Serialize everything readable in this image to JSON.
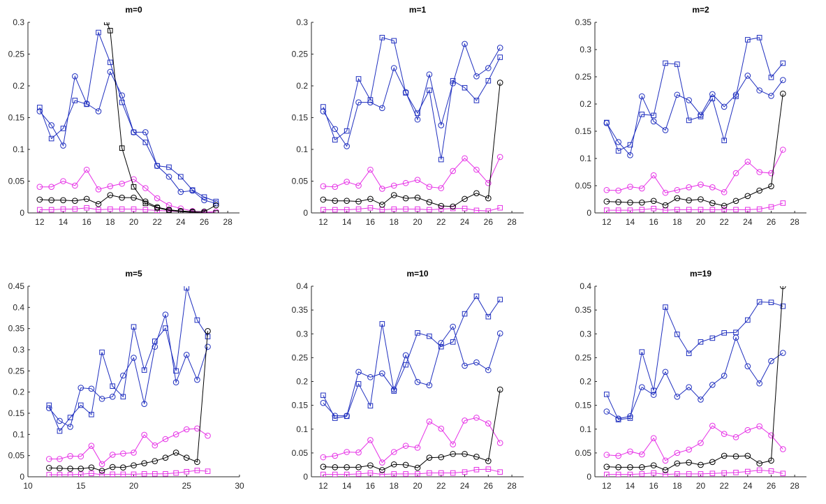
{
  "colors": {
    "blue": "#1f2fbf",
    "magenta": "#e631e6",
    "black": "#000000",
    "axis": "#262626"
  },
  "chart_data": [
    {
      "type": "line",
      "title": "m=0",
      "xlim": [
        11,
        29
      ],
      "ylim": [
        0,
        0.3
      ],
      "xticks": [
        12,
        14,
        16,
        18,
        20,
        22,
        24,
        26,
        28
      ],
      "yticks": [
        0,
        0.05,
        0.1,
        0.15,
        0.2,
        0.25,
        0.3
      ],
      "xtick_labels": [
        "12",
        "14",
        "16",
        "18",
        "20",
        "22",
        "24",
        "26",
        "28"
      ],
      "ytick_labels": [
        "0",
        "0.05",
        "0.1",
        "0.15",
        "0.2",
        "0.25",
        "0.3"
      ],
      "x": [
        12,
        13,
        14,
        15,
        16,
        17,
        18,
        19,
        20,
        21,
        22,
        23,
        24,
        25,
        26,
        27
      ],
      "series": [
        {
          "name": "blue-circle",
          "color": "blue",
          "marker": "circle",
          "values": [
            0.16,
            0.138,
            0.106,
            0.215,
            0.172,
            0.16,
            0.222,
            0.185,
            0.127,
            0.127,
            0.074,
            0.057,
            0.033,
            0.035,
            0.02,
            0.015
          ]
        },
        {
          "name": "blue-square",
          "color": "blue",
          "marker": "square",
          "values": [
            0.166,
            0.117,
            0.133,
            0.177,
            0.171,
            0.284,
            0.237,
            0.174,
            0.127,
            0.111,
            0.074,
            0.072,
            0.057,
            0.036,
            0.025,
            0.018
          ]
        },
        {
          "name": "magenta-circle",
          "color": "magenta",
          "marker": "circle",
          "values": [
            0.041,
            0.041,
            0.05,
            0.043,
            0.068,
            0.037,
            0.042,
            0.046,
            0.053,
            0.039,
            0.023,
            0.012,
            0.007,
            0.003,
            0.001,
            0.002
          ]
        },
        {
          "name": "magenta-square",
          "color": "magenta",
          "marker": "square",
          "values": [
            0.005,
            0.005,
            0.006,
            0.006,
            0.008,
            0.005,
            0.006,
            0.006,
            0.006,
            0.005,
            0.004,
            0.003,
            0.002,
            0.001,
            0.001,
            0.0
          ]
        },
        {
          "name": "black-circle",
          "color": "black",
          "marker": "circle",
          "values": [
            0.021,
            0.02,
            0.02,
            0.019,
            0.022,
            0.014,
            0.028,
            0.024,
            0.024,
            0.018,
            0.009,
            0.005,
            0.003,
            0.002,
            0.002,
            0.012
          ]
        },
        {
          "name": "black-square",
          "color": "black",
          "marker": "square",
          "x": [
            17.7,
            18,
            19,
            20,
            21,
            22,
            23,
            24,
            25,
            26,
            27
          ],
          "values": [
            0.3,
            0.287,
            0.102,
            0.041,
            0.015,
            0.008,
            0.004,
            0.002,
            0.001,
            0.0,
            0.0
          ]
        }
      ]
    },
    {
      "type": "line",
      "title": "m=1",
      "xlim": [
        11,
        29
      ],
      "ylim": [
        0,
        0.3
      ],
      "xticks": [
        12,
        14,
        16,
        18,
        20,
        22,
        24,
        26,
        28
      ],
      "yticks": [
        0,
        0.05,
        0.1,
        0.15,
        0.2,
        0.25,
        0.3
      ],
      "xtick_labels": [
        "12",
        "14",
        "16",
        "18",
        "20",
        "22",
        "24",
        "26",
        "28"
      ],
      "ytick_labels": [
        "0",
        "0.05",
        "0.1",
        "0.15",
        "0.2",
        "0.25",
        "0.3"
      ],
      "x": [
        12,
        13,
        14,
        15,
        16,
        17,
        18,
        19,
        20,
        21,
        22,
        23,
        24,
        25,
        26,
        27
      ],
      "series": [
        {
          "name": "blue-circle",
          "color": "blue",
          "marker": "circle",
          "values": [
            0.16,
            0.132,
            0.105,
            0.174,
            0.174,
            0.165,
            0.228,
            0.19,
            0.147,
            0.218,
            0.138,
            0.204,
            0.266,
            0.215,
            0.228,
            0.26
          ]
        },
        {
          "name": "blue-square",
          "color": "blue",
          "marker": "square",
          "values": [
            0.167,
            0.115,
            0.129,
            0.211,
            0.178,
            0.276,
            0.271,
            0.189,
            0.157,
            0.193,
            0.084,
            0.208,
            0.197,
            0.177,
            0.208,
            0.245
          ]
        },
        {
          "name": "magenta-circle",
          "color": "magenta",
          "marker": "circle",
          "values": [
            0.042,
            0.041,
            0.049,
            0.043,
            0.068,
            0.038,
            0.043,
            0.047,
            0.052,
            0.041,
            0.039,
            0.066,
            0.086,
            0.068,
            0.047,
            0.088
          ]
        },
        {
          "name": "magenta-square",
          "color": "magenta",
          "marker": "square",
          "values": [
            0.005,
            0.005,
            0.005,
            0.006,
            0.008,
            0.005,
            0.006,
            0.006,
            0.006,
            0.005,
            0.006,
            0.007,
            0.007,
            0.004,
            0.003,
            0.008
          ]
        },
        {
          "name": "black-circle",
          "color": "black",
          "marker": "circle",
          "values": [
            0.021,
            0.019,
            0.019,
            0.018,
            0.022,
            0.013,
            0.028,
            0.023,
            0.024,
            0.017,
            0.011,
            0.01,
            0.022,
            0.031,
            0.023,
            0.205
          ]
        }
      ]
    },
    {
      "type": "line",
      "title": "m=2",
      "xlim": [
        11,
        29
      ],
      "ylim": [
        0,
        0.35
      ],
      "xticks": [
        12,
        14,
        16,
        18,
        20,
        22,
        24,
        26,
        28
      ],
      "yticks": [
        0,
        0.05,
        0.1,
        0.15,
        0.2,
        0.25,
        0.3,
        0.35
      ],
      "xtick_labels": [
        "12",
        "14",
        "16",
        "18",
        "20",
        "22",
        "24",
        "26",
        "28"
      ],
      "ytick_labels": [
        "0",
        "0.05",
        "0.1",
        "0.15",
        "0.2",
        "0.25",
        "0.3",
        "0.35"
      ],
      "x": [
        12,
        13,
        14,
        15,
        16,
        17,
        18,
        19,
        20,
        21,
        22,
        23,
        24,
        25,
        26,
        27
      ],
      "series": [
        {
          "name": "blue-circle",
          "color": "blue",
          "marker": "circle",
          "values": [
            0.165,
            0.13,
            0.106,
            0.214,
            0.168,
            0.152,
            0.217,
            0.207,
            0.18,
            0.218,
            0.195,
            0.217,
            0.252,
            0.225,
            0.215,
            0.244
          ]
        },
        {
          "name": "blue-square",
          "color": "blue",
          "marker": "square",
          "values": [
            0.166,
            0.114,
            0.125,
            0.181,
            0.179,
            0.275,
            0.273,
            0.17,
            0.177,
            0.21,
            0.133,
            0.214,
            0.318,
            0.322,
            0.249,
            0.275
          ]
        },
        {
          "name": "magenta-circle",
          "color": "magenta",
          "marker": "circle",
          "values": [
            0.042,
            0.041,
            0.048,
            0.045,
            0.069,
            0.037,
            0.042,
            0.047,
            0.052,
            0.047,
            0.038,
            0.073,
            0.094,
            0.075,
            0.073,
            0.116
          ]
        },
        {
          "name": "magenta-square",
          "color": "magenta",
          "marker": "square",
          "values": [
            0.005,
            0.005,
            0.005,
            0.006,
            0.008,
            0.005,
            0.006,
            0.006,
            0.006,
            0.006,
            0.006,
            0.006,
            0.006,
            0.007,
            0.011,
            0.018
          ]
        },
        {
          "name": "black-circle",
          "color": "black",
          "marker": "circle",
          "values": [
            0.021,
            0.02,
            0.019,
            0.019,
            0.022,
            0.014,
            0.027,
            0.023,
            0.025,
            0.018,
            0.013,
            0.022,
            0.031,
            0.041,
            0.049,
            0.219
          ]
        }
      ]
    },
    {
      "type": "line",
      "title": "m=5",
      "xlim": [
        10,
        30
      ],
      "ylim": [
        0,
        0.45
      ],
      "xticks": [
        10,
        15,
        20,
        25,
        30
      ],
      "yticks": [
        0,
        0.05,
        0.1,
        0.15,
        0.2,
        0.25,
        0.3,
        0.35,
        0.4,
        0.45
      ],
      "xtick_labels": [
        "10",
        "15",
        "20",
        "25",
        "30"
      ],
      "ytick_labels": [
        "0",
        "0.05",
        "0.1",
        "0.15",
        "0.2",
        "0.25",
        "0.3",
        "0.35",
        "0.4",
        "0.45"
      ],
      "x": [
        12,
        13,
        14,
        15,
        16,
        17,
        18,
        19,
        20,
        21,
        22,
        23,
        24,
        25,
        26,
        27
      ],
      "series": [
        {
          "name": "blue-circle",
          "color": "blue",
          "marker": "circle",
          "values": [
            0.162,
            0.132,
            0.118,
            0.21,
            0.208,
            0.184,
            0.189,
            0.239,
            0.281,
            0.172,
            0.307,
            0.383,
            0.223,
            0.288,
            0.229,
            0.307
          ]
        },
        {
          "name": "blue-square",
          "color": "blue",
          "marker": "square",
          "values": [
            0.169,
            0.108,
            0.14,
            0.169,
            0.147,
            0.294,
            0.214,
            0.189,
            0.354,
            0.252,
            0.32,
            0.351,
            0.25,
            0.446,
            0.37,
            0.331
          ]
        },
        {
          "name": "magenta-circle",
          "color": "magenta",
          "marker": "circle",
          "values": [
            0.042,
            0.042,
            0.049,
            0.048,
            0.073,
            0.03,
            0.052,
            0.055,
            0.057,
            0.099,
            0.074,
            0.089,
            0.1,
            0.112,
            0.114,
            0.097
          ]
        },
        {
          "name": "magenta-square",
          "color": "magenta",
          "marker": "square",
          "values": [
            0.005,
            0.005,
            0.005,
            0.006,
            0.008,
            0.005,
            0.006,
            0.006,
            0.006,
            0.007,
            0.007,
            0.007,
            0.009,
            0.012,
            0.015,
            0.013
          ]
        },
        {
          "name": "black-circle",
          "color": "black",
          "marker": "circle",
          "values": [
            0.021,
            0.02,
            0.019,
            0.019,
            0.022,
            0.014,
            0.023,
            0.022,
            0.027,
            0.032,
            0.037,
            0.045,
            0.057,
            0.045,
            0.035,
            0.344
          ]
        }
      ]
    },
    {
      "type": "line",
      "title": "m=10",
      "xlim": [
        11,
        29
      ],
      "ylim": [
        0,
        0.4
      ],
      "xticks": [
        12,
        14,
        16,
        18,
        20,
        22,
        24,
        26,
        28
      ],
      "yticks": [
        0,
        0.05,
        0.1,
        0.15,
        0.2,
        0.25,
        0.3,
        0.35,
        0.4
      ],
      "xtick_labels": [
        "12",
        "14",
        "16",
        "18",
        "20",
        "22",
        "24",
        "26",
        "28"
      ],
      "ytick_labels": [
        "0",
        "0.05",
        "0.1",
        "0.15",
        "0.2",
        "0.25",
        "0.3",
        "0.35",
        "0.4"
      ],
      "x": [
        12,
        13,
        14,
        15,
        16,
        17,
        18,
        19,
        20,
        21,
        22,
        23,
        24,
        25,
        26,
        27
      ],
      "series": [
        {
          "name": "blue-circle",
          "color": "blue",
          "marker": "circle",
          "values": [
            0.155,
            0.128,
            0.128,
            0.22,
            0.209,
            0.217,
            0.183,
            0.255,
            0.199,
            0.192,
            0.281,
            0.315,
            0.233,
            0.24,
            0.224,
            0.301
          ]
        },
        {
          "name": "blue-square",
          "color": "blue",
          "marker": "square",
          "values": [
            0.171,
            0.123,
            0.127,
            0.195,
            0.149,
            0.321,
            0.18,
            0.235,
            0.302,
            0.295,
            0.273,
            0.283,
            0.342,
            0.379,
            0.336,
            0.372
          ]
        },
        {
          "name": "magenta-circle",
          "color": "magenta",
          "marker": "circle",
          "values": [
            0.041,
            0.044,
            0.052,
            0.051,
            0.077,
            0.03,
            0.052,
            0.065,
            0.061,
            0.116,
            0.101,
            0.068,
            0.118,
            0.124,
            0.112,
            0.071
          ]
        },
        {
          "name": "magenta-square",
          "color": "magenta",
          "marker": "square",
          "values": [
            0.005,
            0.005,
            0.005,
            0.006,
            0.008,
            0.005,
            0.006,
            0.006,
            0.006,
            0.008,
            0.008,
            0.008,
            0.01,
            0.015,
            0.016,
            0.01
          ]
        },
        {
          "name": "black-circle",
          "color": "black",
          "marker": "circle",
          "values": [
            0.021,
            0.02,
            0.02,
            0.02,
            0.024,
            0.014,
            0.026,
            0.025,
            0.019,
            0.04,
            0.041,
            0.048,
            0.048,
            0.042,
            0.033,
            0.183
          ]
        }
      ]
    },
    {
      "type": "line",
      "title": "m=19",
      "xlim": [
        11,
        29
      ],
      "ylim": [
        0,
        0.4
      ],
      "xticks": [
        12,
        14,
        16,
        18,
        20,
        22,
        24,
        26,
        28
      ],
      "yticks": [
        0,
        0.05,
        0.1,
        0.15,
        0.2,
        0.25,
        0.3,
        0.35,
        0.4
      ],
      "xtick_labels": [
        "12",
        "14",
        "16",
        "18",
        "20",
        "22",
        "24",
        "26",
        "28"
      ],
      "ytick_labels": [
        "0",
        "0.05",
        "0.1",
        "0.15",
        "0.2",
        "0.25",
        "0.3",
        "0.35",
        "0.4"
      ],
      "x": [
        12,
        13,
        14,
        15,
        16,
        17,
        18,
        19,
        20,
        21,
        22,
        23,
        24,
        25,
        26,
        27
      ],
      "series": [
        {
          "name": "blue-circle",
          "color": "blue",
          "marker": "circle",
          "values": [
            0.137,
            0.122,
            0.127,
            0.188,
            0.172,
            0.22,
            0.168,
            0.188,
            0.162,
            0.193,
            0.212,
            0.292,
            0.232,
            0.196,
            0.243,
            0.26
          ]
        },
        {
          "name": "blue-square",
          "color": "blue",
          "marker": "square",
          "values": [
            0.173,
            0.12,
            0.123,
            0.262,
            0.181,
            0.356,
            0.299,
            0.259,
            0.283,
            0.291,
            0.302,
            0.303,
            0.329,
            0.367,
            0.366,
            0.358
          ]
        },
        {
          "name": "magenta-circle",
          "color": "magenta",
          "marker": "circle",
          "values": [
            0.046,
            0.044,
            0.053,
            0.047,
            0.081,
            0.034,
            0.05,
            0.057,
            0.071,
            0.107,
            0.09,
            0.083,
            0.098,
            0.106,
            0.087,
            0.058
          ]
        },
        {
          "name": "magenta-square",
          "color": "magenta",
          "marker": "square",
          "values": [
            0.005,
            0.005,
            0.005,
            0.006,
            0.008,
            0.005,
            0.006,
            0.006,
            0.006,
            0.007,
            0.008,
            0.009,
            0.011,
            0.014,
            0.012,
            0.007
          ]
        },
        {
          "name": "black-circle",
          "color": "black",
          "marker": "circle",
          "values": [
            0.021,
            0.02,
            0.02,
            0.02,
            0.024,
            0.014,
            0.028,
            0.03,
            0.025,
            0.031,
            0.044,
            0.043,
            0.044,
            0.028,
            0.034,
            0.4
          ]
        }
      ]
    }
  ]
}
